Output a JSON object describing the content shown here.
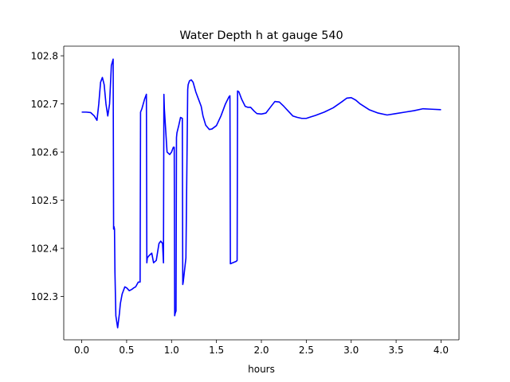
{
  "chart_data": {
    "type": "line",
    "title": "Water Depth h at gauge 540",
    "xlabel": "hours",
    "ylabel": "",
    "xlim": [
      -0.2,
      4.2
    ],
    "ylim": [
      102.21,
      102.82
    ],
    "grid": false,
    "x_ticks": [
      0.0,
      0.5,
      1.0,
      1.5,
      2.0,
      2.5,
      3.0,
      3.5,
      4.0
    ],
    "x_tick_labels": [
      "0.0",
      "0.5",
      "1.0",
      "1.5",
      "2.0",
      "2.5",
      "3.0",
      "3.5",
      "4.0"
    ],
    "y_ticks": [
      102.3,
      102.4,
      102.5,
      102.6,
      102.7,
      102.8
    ],
    "y_tick_labels": [
      "102.3",
      "102.4",
      "102.5",
      "102.6",
      "102.7",
      "102.8"
    ],
    "series": [
      {
        "color": "#0000ff",
        "x": [
          0.0,
          0.05,
          0.1,
          0.14,
          0.17,
          0.19,
          0.21,
          0.23,
          0.25,
          0.27,
          0.29,
          0.31,
          0.33,
          0.35,
          0.355,
          0.36,
          0.365,
          0.37,
          0.38,
          0.4,
          0.42,
          0.43,
          0.45,
          0.48,
          0.5,
          0.53,
          0.56,
          0.58,
          0.6,
          0.63,
          0.65,
          0.655,
          0.67,
          0.7,
          0.72,
          0.725,
          0.73,
          0.75,
          0.78,
          0.8,
          0.83,
          0.86,
          0.88,
          0.9,
          0.91,
          0.915,
          0.92,
          0.95,
          0.98,
          1.0,
          1.02,
          1.03,
          1.035,
          1.04,
          1.05,
          1.055,
          1.06,
          1.08,
          1.1,
          1.12,
          1.125,
          1.13,
          1.16,
          1.18,
          1.185,
          1.2,
          1.22,
          1.24,
          1.27,
          1.3,
          1.33,
          1.35,
          1.38,
          1.42,
          1.45,
          1.5,
          1.55,
          1.6,
          1.64,
          1.65,
          1.655,
          1.68,
          1.72,
          1.73,
          1.735,
          1.75,
          1.78,
          1.82,
          1.85,
          1.88,
          1.92,
          1.95,
          2.0,
          2.05,
          2.1,
          2.15,
          2.2,
          2.25,
          2.3,
          2.35,
          2.4,
          2.45,
          2.5,
          2.55,
          2.6,
          2.7,
          2.8,
          2.9,
          2.95,
          3.0,
          3.05,
          3.1,
          3.2,
          3.3,
          3.4,
          3.5,
          3.6,
          3.7,
          3.8,
          3.9,
          4.0
        ],
        "values": [
          102.683,
          102.683,
          102.682,
          102.675,
          102.666,
          102.7,
          102.745,
          102.755,
          102.74,
          102.7,
          102.675,
          102.7,
          102.78,
          102.793,
          102.44,
          102.445,
          102.44,
          102.35,
          102.26,
          102.235,
          102.265,
          102.285,
          102.305,
          102.32,
          102.318,
          102.312,
          102.315,
          102.318,
          102.32,
          102.33,
          102.33,
          102.683,
          102.69,
          102.71,
          102.72,
          102.37,
          102.38,
          102.385,
          102.39,
          102.37,
          102.375,
          102.41,
          102.415,
          102.41,
          102.37,
          102.72,
          102.69,
          102.6,
          102.595,
          102.6,
          102.61,
          102.61,
          102.26,
          102.265,
          102.27,
          102.63,
          102.64,
          102.655,
          102.672,
          102.67,
          102.325,
          102.33,
          102.38,
          102.73,
          102.74,
          102.748,
          102.75,
          102.745,
          102.725,
          102.71,
          102.695,
          102.675,
          102.656,
          102.647,
          102.648,
          102.655,
          102.675,
          102.7,
          102.715,
          102.717,
          102.368,
          102.37,
          102.373,
          102.375,
          102.727,
          102.725,
          102.71,
          102.695,
          102.693,
          102.693,
          102.685,
          102.68,
          102.679,
          102.681,
          102.693,
          102.705,
          102.704,
          102.695,
          102.685,
          102.675,
          102.672,
          102.67,
          102.67,
          102.673,
          102.676,
          102.683,
          102.692,
          102.705,
          102.712,
          102.713,
          102.708,
          102.7,
          102.688,
          102.681,
          102.677,
          102.68,
          102.683,
          102.686,
          102.69,
          102.689,
          102.688
        ]
      }
    ]
  }
}
